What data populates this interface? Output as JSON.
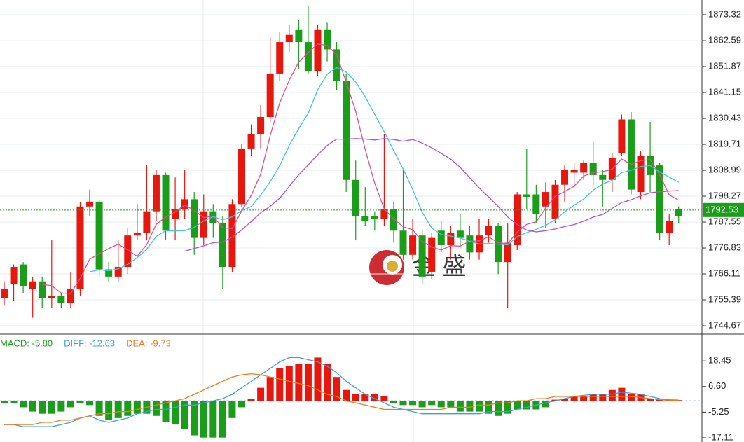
{
  "chart_data": [
    {
      "type": "candlestick",
      "open": [
        1756,
        1762,
        1770,
        1760,
        1763,
        1756,
        1757,
        1754,
        1760,
        1794,
        1796,
        1768,
        1765,
        1769,
        1782,
        1783,
        1792,
        1807,
        1789,
        1793,
        1797,
        1781,
        1792,
        1787,
        1769,
        1795,
        1818,
        1824,
        1831,
        1849,
        1862,
        1867,
        1862,
        1850,
        1867,
        1859,
        1846,
        1805,
        1790,
        1790,
        1789,
        1793,
        1784,
        1774,
        1782,
        1767,
        1784,
        1778,
        1784,
        1782,
        1775,
        1782,
        1786,
        1771,
        1778,
        1799,
        1799,
        1794,
        1789,
        1803,
        1808,
        1808,
        1812,
        1807,
        1805,
        1816,
        1830,
        1800,
        1815,
        1811,
        1783,
        1793
      ],
      "high": [
        1763,
        1770,
        1771,
        1765,
        1765,
        1780,
        1758,
        1767,
        1796,
        1801,
        1797,
        1771,
        1780,
        1785,
        1795,
        1811,
        1809,
        1808,
        1806,
        1809,
        1800,
        1799,
        1795,
        1790,
        1797,
        1820,
        1828,
        1836,
        1864,
        1866,
        1869,
        1871,
        1877,
        1869,
        1870,
        1862,
        1849,
        1813,
        1802,
        1792,
        1824,
        1796,
        1809,
        1789,
        1784,
        1783,
        1788,
        1786,
        1791,
        1786,
        1789,
        1789,
        1787,
        1787,
        1800,
        1818,
        1803,
        1804,
        1805,
        1811,
        1812,
        1813,
        1821,
        1809,
        1816,
        1832,
        1833,
        1817,
        1829,
        1812,
        1791,
        1794
      ],
      "low": [
        1753,
        1755,
        1758,
        1748,
        1752,
        1752,
        1752,
        1752,
        1757,
        1790,
        1765,
        1763,
        1763,
        1766,
        1780,
        1780,
        1788,
        1780,
        1780,
        1789,
        1774,
        1778,
        1781,
        1760,
        1767,
        1794,
        1815,
        1818,
        1829,
        1846,
        1858,
        1851,
        1849,
        1848,
        1854,
        1842,
        1800,
        1780,
        1786,
        1784,
        1786,
        1779,
        1772,
        1772,
        1762,
        1764,
        1775,
        1772,
        1777,
        1772,
        1772,
        1779,
        1766,
        1752,
        1776,
        1793,
        1787,
        1785,
        1787,
        1796,
        1802,
        1805,
        1803,
        1794,
        1800,
        1815,
        1799,
        1797,
        1800,
        1780,
        1778,
        1787
      ],
      "close": [
        1760,
        1769,
        1761,
        1763,
        1756,
        1757,
        1754,
        1760,
        1794,
        1796,
        1768,
        1765,
        1769,
        1782,
        1783,
        1792,
        1807,
        1784,
        1793,
        1797,
        1781,
        1792,
        1787,
        1769,
        1795,
        1818,
        1824,
        1831,
        1849,
        1862,
        1865,
        1862,
        1850,
        1867,
        1859,
        1846,
        1805,
        1790,
        1788,
        1789,
        1793,
        1784,
        1774,
        1782,
        1765,
        1781,
        1778,
        1783,
        1781,
        1775,
        1782,
        1786,
        1771,
        1779,
        1799,
        1798,
        1791,
        1800,
        1803,
        1809,
        1809,
        1812,
        1807,
        1805,
        1814,
        1830,
        1801,
        1815,
        1807,
        1783,
        1788,
        1790
      ],
      "up_color": "#e8170e",
      "down_color": "#1a9e1a",
      "series": [
        {
          "color": "#e0508a",
          "values": [
            null,
            null,
            null,
            null,
            1761.8,
            1761.2,
            1758.2,
            1758.0,
            1764.2,
            1772.2,
            1774.4,
            1776.6,
            1778.4,
            1776.0,
            1773.4,
            1778.2,
            1786.6,
            1789.6,
            1791.8,
            1794.6,
            1792.4,
            1789.4,
            1790.0,
            1785.2,
            1784.8,
            1792.2,
            1798.6,
            1807.4,
            1823.4,
            1836.8,
            1846.2,
            1853.8,
            1857.6,
            1861.2,
            1860.6,
            1856.8,
            1845.4,
            1833.4,
            1817.6,
            1803.6,
            1793.0,
            1788.8,
            1785.6,
            1784.4,
            1779.6,
            1777.2,
            1776.0,
            1777.8,
            1777.6,
            1779.6,
            1779.8,
            1781.4,
            1779.0,
            1778.6,
            1783.4,
            1786.6,
            1787.6,
            1793.4,
            1798.2,
            1800.2,
            1802.4,
            1806.6,
            1808.0,
            1808.4,
            1809.4,
            1813.6,
            1811.4,
            1813.0,
            1813.4,
            1807.2,
            1798.8,
            1796.6
          ]
        },
        {
          "color": "#3fc6d8",
          "values": [
            null,
            null,
            null,
            null,
            null,
            null,
            null,
            null,
            null,
            1767.0,
            1767.8,
            1767.4,
            1768.2,
            1770.1,
            1772.8,
            1776.3,
            1781.6,
            1784.0,
            1783.9,
            1784.0,
            1785.3,
            1788.0,
            1789.8,
            1788.5,
            1789.7,
            1792.3,
            1794.0,
            1798.7,
            1804.3,
            1810.8,
            1819.2,
            1826.2,
            1832.5,
            1842.3,
            1848.7,
            1851.5,
            1849.6,
            1845.5,
            1839.4,
            1832.1,
            1824.9,
            1817.1,
            1809.5,
            1801.0,
            1791.6,
            1785.1,
            1782.4,
            1781.7,
            1781.0,
            1779.6,
            1778.5,
            1778.7,
            1778.4,
            1778.1,
            1781.5,
            1783.2,
            1784.5,
            1786.2,
            1788.4,
            1791.8,
            1794.5,
            1797.1,
            1800.7,
            1803.3,
            1804.8,
            1808.0,
            1809.0,
            1810.5,
            1810.9,
            1808.3,
            1806.2,
            1804.0
          ]
        },
        {
          "color": "#b44fc8",
          "values": [
            null,
            null,
            null,
            null,
            null,
            null,
            null,
            null,
            null,
            null,
            null,
            null,
            null,
            null,
            null,
            null,
            null,
            null,
            null,
            1775.5,
            1776.6,
            1777.7,
            1779.0,
            1779.3,
            1781.3,
            1784.3,
            1787.8,
            1791.4,
            1794.1,
            1797.4,
            1802.3,
            1807.1,
            1811.2,
            1815.4,
            1819.2,
            1821.9,
            1821.8,
            1822.1,
            1821.9,
            1821.5,
            1822.1,
            1821.7,
            1821.0,
            1821.7,
            1820.2,
            1818.3,
            1816.0,
            1813.6,
            1810.2,
            1805.9,
            1801.7,
            1797.9,
            1794.0,
            1789.6,
            1786.6,
            1784.2,
            1783.5,
            1784.0,
            1784.7,
            1785.7,
            1786.5,
            1787.9,
            1789.6,
            1790.7,
            1793.2,
            1795.6,
            1796.8,
            1798.4,
            1799.7,
            1800.1,
            1800.4,
            1800.6
          ]
        }
      ],
      "last_price": {
        "value": 1792.53,
        "label": "1792.53"
      },
      "last_price_color": "#1a9e1a",
      "ylim": [
        1741.2,
        1879.4
      ],
      "yticks": [
        1873.32,
        1862.59,
        1851.87,
        1841.15,
        1830.43,
        1819.71,
        1808.99,
        1798.27,
        1787.55,
        1776.83,
        1766.11,
        1755.39,
        1744.67
      ],
      "grid": true,
      "watermark": "金 盛"
    },
    {
      "type": "macd",
      "legend": [
        {
          "label": "MACD: -5.80",
          "color": "#1a9e1a"
        },
        {
          "label": "DIFF: -12.63",
          "color": "#3aa0e0"
        },
        {
          "label": "DEA: -9.73",
          "color": "#f07a20"
        }
      ],
      "values": [
        -1,
        -1,
        -3,
        -5,
        -6,
        -6,
        -5,
        -3,
        -1,
        -2,
        -7,
        -9,
        -8,
        -7,
        -6,
        -6,
        -7,
        -10,
        -11,
        -13,
        -16,
        -17,
        -17,
        -17,
        -8,
        -3,
        1,
        6,
        11,
        15,
        16,
        17,
        17,
        20,
        17,
        11,
        5,
        3,
        3,
        3,
        2,
        -1,
        -2,
        -2,
        -3,
        -2,
        -3,
        -3,
        -5,
        -5,
        -5,
        -6,
        -7,
        -6,
        -4,
        -4,
        -4,
        -3,
        0.5,
        1,
        2,
        2,
        3,
        3,
        5,
        6,
        3,
        3,
        1,
        0.5,
        0.5,
        0.3
      ],
      "up_color": "#e8170e",
      "down_color": "#1a9e1a",
      "series": [
        {
          "color": "#3aa0e0",
          "values": [
            -11,
            -11,
            -12,
            -12,
            -12,
            -12,
            -11,
            -10,
            -8,
            -7,
            -9,
            -10,
            -9,
            -8,
            -6,
            -5,
            -4,
            -4,
            -3,
            -2,
            -2,
            -1,
            0,
            1,
            3,
            6,
            9,
            12,
            15,
            18,
            20,
            20,
            19,
            18,
            16,
            13,
            9,
            6,
            3,
            1,
            -1,
            -3,
            -4,
            -5,
            -6,
            -6,
            -6,
            -6,
            -6,
            -6,
            -6,
            -5,
            -5,
            -5,
            -4,
            -3,
            -2,
            -1,
            0,
            1,
            2,
            2.5,
            3,
            3,
            3,
            4,
            3.5,
            3,
            2,
            1,
            0.5,
            0.3
          ]
        },
        {
          "color": "#f07a20",
          "values": [
            -11,
            -11,
            -11,
            -11,
            -10,
            -10,
            -9,
            -9,
            -8,
            -7,
            -6,
            -6,
            -5,
            -5,
            -4,
            -3,
            -2,
            -1,
            0,
            1,
            3,
            5,
            7,
            9,
            11,
            12,
            12.5,
            12,
            11,
            10,
            9,
            8,
            7,
            5,
            3,
            2,
            0,
            -1,
            -2,
            -3,
            -4,
            -4,
            -4,
            -4,
            -4,
            -4,
            -4,
            -3,
            -3,
            -3,
            -2,
            -2,
            -1,
            -1,
            0,
            0,
            1,
            1,
            2,
            2,
            2,
            2,
            2,
            2,
            2,
            2,
            2,
            1.5,
            1,
            0.5,
            0.3,
            0.2
          ]
        }
      ],
      "ylim": [
        -19.06,
        30.5
      ],
      "yticks": [
        18.45,
        {
          "value": 6.6,
          "label": "6.60"
        },
        -5.25,
        -17.11
      ]
    }
  ]
}
